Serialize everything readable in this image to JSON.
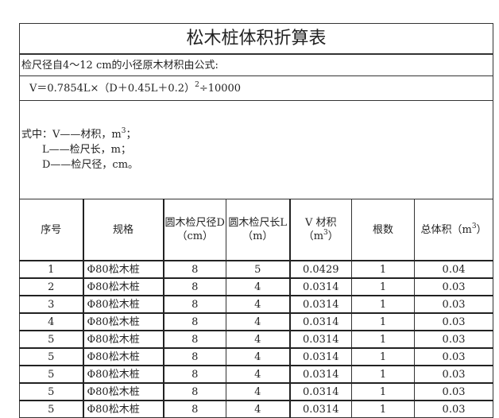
{
  "title": "松木桩体积折算表",
  "subtitle": "检尺径自4～12 cm的小径原木材积由公式:",
  "formula": {
    "main": "V＝0.7854L×（D＋0.45L＋0.2）",
    "exp": "2",
    "tail": "÷10000"
  },
  "notes": {
    "v_prefix": "式中：V——材积，m",
    "v_exp": "3",
    "v_suffix": "；",
    "l_line": "L——检尺长，m；",
    "d_line": "D——检尺径，cm。"
  },
  "headers": {
    "seq": "序号",
    "spec": "规格",
    "diam": "圆木检尺径D（cm）",
    "len": "圆木检尺长L（m）",
    "vol_a": "V 材积（m",
    "vol_exp": "3",
    "vol_b": "）",
    "count": "根数",
    "total_a": "总体积（m",
    "total_exp": "3",
    "total_b": "）"
  },
  "rows": [
    {
      "seq": "1",
      "spec": "Φ80松木桩",
      "d": "8",
      "l": "5",
      "v": "0.0429",
      "n": "1",
      "t": "0.04"
    },
    {
      "seq": "2",
      "spec": "Φ80松木桩",
      "d": "8",
      "l": "4",
      "v": "0.0314",
      "n": "1",
      "t": "0.03"
    },
    {
      "seq": "3",
      "spec": "Φ80松木桩",
      "d": "8",
      "l": "4",
      "v": "0.0314",
      "n": "1",
      "t": "0.03"
    },
    {
      "seq": "4",
      "spec": "Φ80松木桩",
      "d": "8",
      "l": "4",
      "v": "0.0314",
      "n": "1",
      "t": "0.03"
    },
    {
      "seq": "5",
      "spec": "Φ80松木桩",
      "d": "8",
      "l": "4",
      "v": "0.0314",
      "n": "1",
      "t": "0.03"
    },
    {
      "seq": "5",
      "spec": "Φ80松木桩",
      "d": "8",
      "l": "4",
      "v": "0.0314",
      "n": "1",
      "t": "0.03"
    },
    {
      "seq": "5",
      "spec": "Φ80松木桩",
      "d": "8",
      "l": "4",
      "v": "0.0314",
      "n": "1",
      "t": "0.03"
    },
    {
      "seq": "5",
      "spec": "Φ80松木桩",
      "d": "8",
      "l": "4",
      "v": "0.0314",
      "n": "1",
      "t": "0.03"
    },
    {
      "seq": "5",
      "spec": "Φ80松木桩",
      "d": "8",
      "l": "4",
      "v": "0.0314",
      "n": "1",
      "t": "0.03"
    }
  ]
}
